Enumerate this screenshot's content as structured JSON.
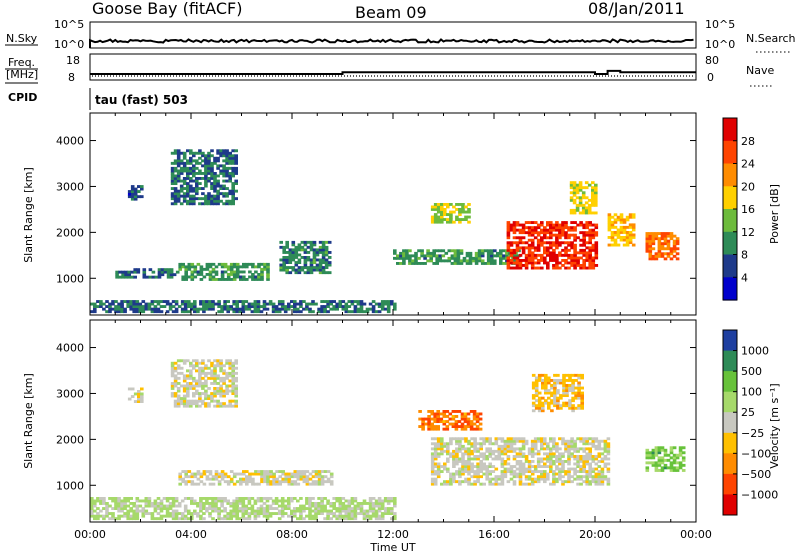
{
  "header": {
    "station": "Goose Bay (fitACF)",
    "beam": "Beam 09",
    "date": "08/Jan/2011"
  },
  "top_panels": {
    "nsky_label": "N.Sky",
    "nsky_ticks": [
      "10^5",
      "10^0"
    ],
    "nsearch_label": "N.Search",
    "nsearch_ticks": [
      "10^5",
      "10^0"
    ],
    "freq_label_line1": "Freq.",
    "freq_label_line2": "[MHz]",
    "freq_ticks": [
      "18",
      "8"
    ],
    "nave_label": "Nave",
    "nave_ticks": [
      "80",
      "0"
    ],
    "cpid_label": "CPID",
    "cpid_text": "tau (fast) 503"
  },
  "axes": {
    "y_label": "Slant Range [km]",
    "y_ticks": [
      "4000",
      "3000",
      "2000",
      "1000"
    ],
    "x_label": "Time UT",
    "x_ticks": [
      "00:00",
      "04:00",
      "08:00",
      "12:00",
      "16:00",
      "20:00",
      "00:00"
    ]
  },
  "colorbars": {
    "power": {
      "label": "Power [dB]",
      "ticks": [
        "28",
        "24",
        "20",
        "16",
        "12",
        "8",
        "4"
      ],
      "colors": [
        "#e00000",
        "#ff4400",
        "#ff8c00",
        "#ffd000",
        "#6dbb3c",
        "#2e8b57",
        "#1e3a8a",
        "#0000cc"
      ]
    },
    "velocity": {
      "label": "Velocity [m s⁻¹]",
      "ticks": [
        "1000",
        "500",
        "100",
        "25",
        "−25",
        "−100",
        "−500",
        "−1000"
      ],
      "colors": [
        "#1e3fa0",
        "#2e8b57",
        "#67c23a",
        "#a6d96a",
        "#c8c8c0",
        "#ffc000",
        "#ff8c00",
        "#ff4400",
        "#e00000"
      ]
    }
  },
  "chart_data": {
    "type": "heatmap",
    "title": "Goose Bay (fitACF)  Beam 09  08/Jan/2011",
    "xlabel": "Time UT",
    "ylabel": "Slant Range [km]",
    "xlim": [
      "00:00",
      "24:00"
    ],
    "ylim": [
      200,
      4600
    ],
    "panels": [
      {
        "name": "Power",
        "units": "dB",
        "color_range": [
          0,
          30
        ],
        "echo_regions": [
          {
            "t_start_h": 1.5,
            "t_end_h": 2.0,
            "range_km": [
              2700,
              3000
            ],
            "value": 6
          },
          {
            "t_start_h": 3.2,
            "t_end_h": 5.8,
            "range_km": [
              2600,
              3800
            ],
            "value": 8
          },
          {
            "t_start_h": 1.0,
            "t_end_h": 3.5,
            "range_km": [
              1000,
              1200
            ],
            "value": 8
          },
          {
            "t_start_h": 3.5,
            "t_end_h": 7.0,
            "range_km": [
              950,
              1300
            ],
            "value": 10
          },
          {
            "t_start_h": 7.5,
            "t_end_h": 9.5,
            "range_km": [
              1100,
              1800
            ],
            "value": 9
          },
          {
            "t_start_h": 0.0,
            "t_end_h": 12.0,
            "range_km": [
              250,
              500
            ],
            "value": 8
          },
          {
            "t_start_h": 12.0,
            "t_end_h": 17.0,
            "range_km": [
              1300,
              1600
            ],
            "value": 10
          },
          {
            "t_start_h": 13.5,
            "t_end_h": 15.0,
            "range_km": [
              2200,
              2600
            ],
            "value": 14
          },
          {
            "t_start_h": 16.5,
            "t_end_h": 20.0,
            "range_km": [
              1200,
              2200
            ],
            "value": 26
          },
          {
            "t_start_h": 19.0,
            "t_end_h": 20.0,
            "range_km": [
              2400,
              3100
            ],
            "value": 16
          },
          {
            "t_start_h": 20.5,
            "t_end_h": 21.5,
            "range_km": [
              1700,
              2400
            ],
            "value": 18
          },
          {
            "t_start_h": 22.0,
            "t_end_h": 23.3,
            "range_km": [
              1400,
              2000
            ],
            "value": 22
          }
        ]
      },
      {
        "name": "Velocity",
        "units": "m s-1",
        "color_range": [
          -1000,
          1000
        ],
        "echo_regions": [
          {
            "t_start_h": 1.5,
            "t_end_h": 2.0,
            "range_km": [
              2800,
              3100
            ],
            "value": 0
          },
          {
            "t_start_h": 3.2,
            "t_end_h": 5.8,
            "range_km": [
              2700,
              3700
            ],
            "value": 0
          },
          {
            "t_start_h": 0.0,
            "t_end_h": 12.0,
            "range_km": [
              250,
              700
            ],
            "value": 150
          },
          {
            "t_start_h": 3.5,
            "t_end_h": 9.5,
            "range_km": [
              1000,
              1300
            ],
            "value": 0
          },
          {
            "t_start_h": 13.0,
            "t_end_h": 15.5,
            "range_km": [
              2200,
              2600
            ],
            "value": -500
          },
          {
            "t_start_h": 13.5,
            "t_end_h": 20.5,
            "range_km": [
              1000,
              2000
            ],
            "value": 0
          },
          {
            "t_start_h": 17.5,
            "t_end_h": 19.5,
            "range_km": [
              2600,
              3400
            ],
            "value": -200
          },
          {
            "t_start_h": 22.0,
            "t_end_h": 23.5,
            "range_km": [
              1300,
              1800
            ],
            "value": 400
          }
        ]
      }
    ],
    "nsky_level": 0.85,
    "frequency_steps_MHz": [
      {
        "t_start_h": 0.0,
        "t_end_h": 10.0,
        "value": 10.3
      },
      {
        "t_start_h": 10.0,
        "t_end_h": 20.0,
        "value": 11.0
      },
      {
        "t_start_h": 20.0,
        "t_end_h": 20.5,
        "value": 10.3
      },
      {
        "t_start_h": 20.5,
        "t_end_h": 21.0,
        "value": 11.5
      },
      {
        "t_start_h": 21.0,
        "t_end_h": 24.0,
        "value": 11.0
      }
    ]
  }
}
